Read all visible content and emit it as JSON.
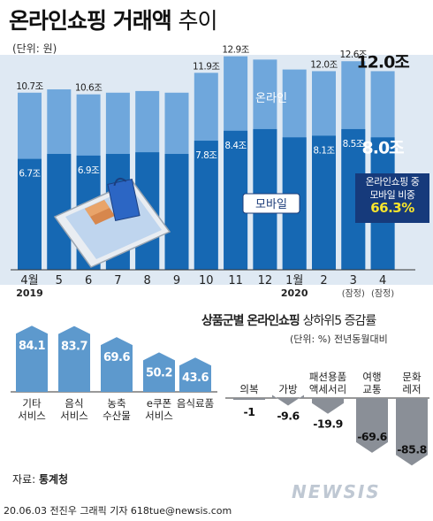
{
  "title_bold": "온라인쇼핑 거래액",
  "title_light": "추이",
  "unit": "(단위: 원)",
  "online_tag": "온라인",
  "mobile_tag": "모바일",
  "ratio_box": {
    "line1": "온라인쇼핑 중",
    "line2": "모바일 비중",
    "pct": "66.3%"
  },
  "category_title_bold": "상품군별 온라인쇼핑",
  "category_title_light": "상하위5 증감률",
  "category_note": "(단위: %) 전년동월대비",
  "source_label": "자료:",
  "source_value": "통계청",
  "credit": "20.06.03 전진우 그래픽 기자 618tue@newsis.com",
  "logo": "NEWSIS",
  "colors": {
    "online": "#6fa7dc",
    "mobile": "#1668b3",
    "dark_navy": "#163a7b",
    "up_bar": "#5d99cd",
    "down_bar": "#8a8f97",
    "panel": "#dfe9f3"
  },
  "chart_data": [
    {
      "type": "bar",
      "title": "온라인쇼핑 거래액 추이",
      "unit": "원",
      "categories": [
        "4월",
        "5",
        "6",
        "7",
        "8",
        "9",
        "10",
        "11",
        "12",
        "1월",
        "2",
        "3",
        "4"
      ],
      "year_labels": {
        "0": "2019",
        "9": "2020"
      },
      "sub_labels": {
        "11": "(잠정)",
        "12": "(잠정)"
      },
      "series": [
        {
          "name": "온라인",
          "values": [
            10.7,
            10.9,
            10.6,
            10.7,
            10.8,
            10.7,
            11.9,
            12.9,
            12.7,
            12.1,
            12.0,
            12.6,
            12.0
          ],
          "labels": {
            "0": "10.7조",
            "2": "10.6조",
            "6": "11.9조",
            "7": "12.9조",
            "10": "12.0조",
            "11": "12.6조",
            "12": "12.0조"
          }
        },
        {
          "name": "모바일",
          "values": [
            6.7,
            7.0,
            6.9,
            7.0,
            7.1,
            7.0,
            7.8,
            8.4,
            8.5,
            8.0,
            8.1,
            8.5,
            8.0
          ],
          "labels": {
            "0": "6.7조",
            "2": "6.9조",
            "6": "7.8조",
            "7": "8.4조",
            "10": "8.1조",
            "11": "8.5조",
            "12": "8.0조"
          }
        }
      ],
      "ylim": [
        0,
        13.2
      ]
    },
    {
      "type": "bar",
      "title": "상품군별 온라인쇼핑 상하위5 증감률",
      "unit": "%",
      "note": "전년동월대비",
      "categories": [
        [
          "기타",
          "서비스"
        ],
        [
          "음식",
          "서비스"
        ],
        [
          "농축",
          "수산물"
        ],
        [
          "e쿠폰",
          "서비스"
        ],
        [
          "음식료품"
        ],
        [
          "의복"
        ],
        [
          "가방"
        ],
        [
          "패션용품",
          "액세서리"
        ],
        [
          "여행",
          "교통"
        ],
        [
          "문화",
          "레저"
        ]
      ],
      "values": [
        84.1,
        83.7,
        69.6,
        50.2,
        43.6,
        -1,
        -9.6,
        -19.9,
        -69.6,
        -85.8
      ],
      "labels": [
        "84.1",
        "83.7",
        "69.6",
        "50.2",
        "43.6",
        "-1",
        "-9.6",
        "-19.9",
        "-69.6",
        "-85.8"
      ]
    }
  ]
}
